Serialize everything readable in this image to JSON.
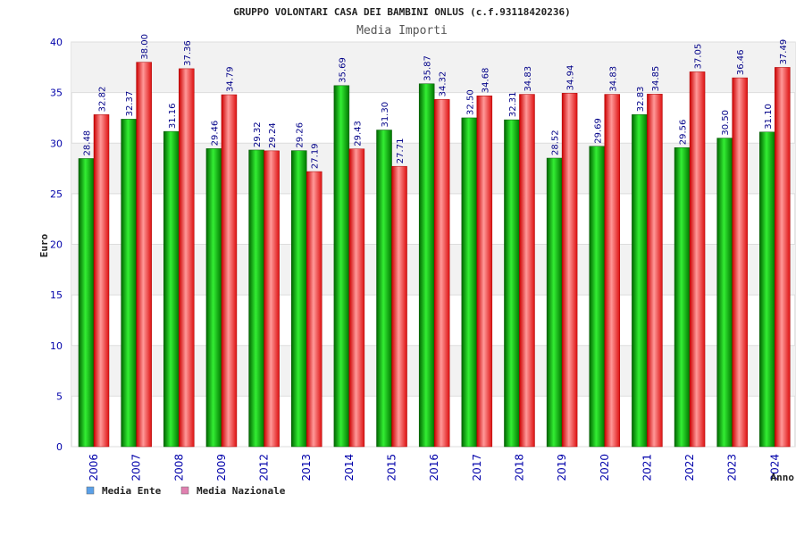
{
  "chart_data": {
    "type": "bar",
    "title": "GRUPPO VOLONTARI CASA DEI BAMBINI ONLUS (c.f.93118420236)",
    "subtitle": "Media Importi",
    "xlabel": "Anno",
    "ylabel": "Euro",
    "ylim": [
      0,
      40
    ],
    "yticks": [
      0,
      5,
      10,
      15,
      20,
      25,
      30,
      35,
      40
    ],
    "grid": true,
    "legend_position": "bottom-left",
    "categories": [
      "2006",
      "2007",
      "2008",
      "2009",
      "2012",
      "2013",
      "2014",
      "2015",
      "2016",
      "2017",
      "2018",
      "2019",
      "2020",
      "2021",
      "2022",
      "2023",
      "2024"
    ],
    "series": [
      {
        "name": "Media Ente",
        "color": "#00aa00",
        "legend_color": "#5aa0e8",
        "values": [
          28.48,
          32.37,
          31.16,
          29.46,
          29.32,
          29.26,
          35.69,
          31.3,
          35.87,
          32.5,
          32.31,
          28.52,
          29.69,
          32.83,
          29.56,
          30.5,
          31.1
        ],
        "labels": [
          "28.48",
          "32.37",
          "31.16",
          "29.46",
          "29.32",
          "29.26",
          "35.69",
          "31.30",
          "35.87",
          "32.50",
          "32.31",
          "28.52",
          "29.69",
          "32.83",
          "29.56",
          "30.50",
          "31.10"
        ]
      },
      {
        "name": "Media Nazionale",
        "color": "#ee2222",
        "legend_color": "#e080b0",
        "values": [
          32.82,
          38.0,
          37.36,
          34.79,
          29.24,
          27.19,
          29.43,
          27.71,
          34.32,
          34.68,
          34.83,
          34.94,
          34.83,
          34.85,
          37.05,
          36.46,
          37.49
        ],
        "labels": [
          "32.82",
          "38.00",
          "37.36",
          "34.79",
          "29.24",
          "27.19",
          "29.43",
          "27.71",
          "34.32",
          "34.68",
          "34.83",
          "34.94",
          "34.83",
          "34.85",
          "37.05",
          "36.46",
          "37.49"
        ]
      }
    ]
  }
}
